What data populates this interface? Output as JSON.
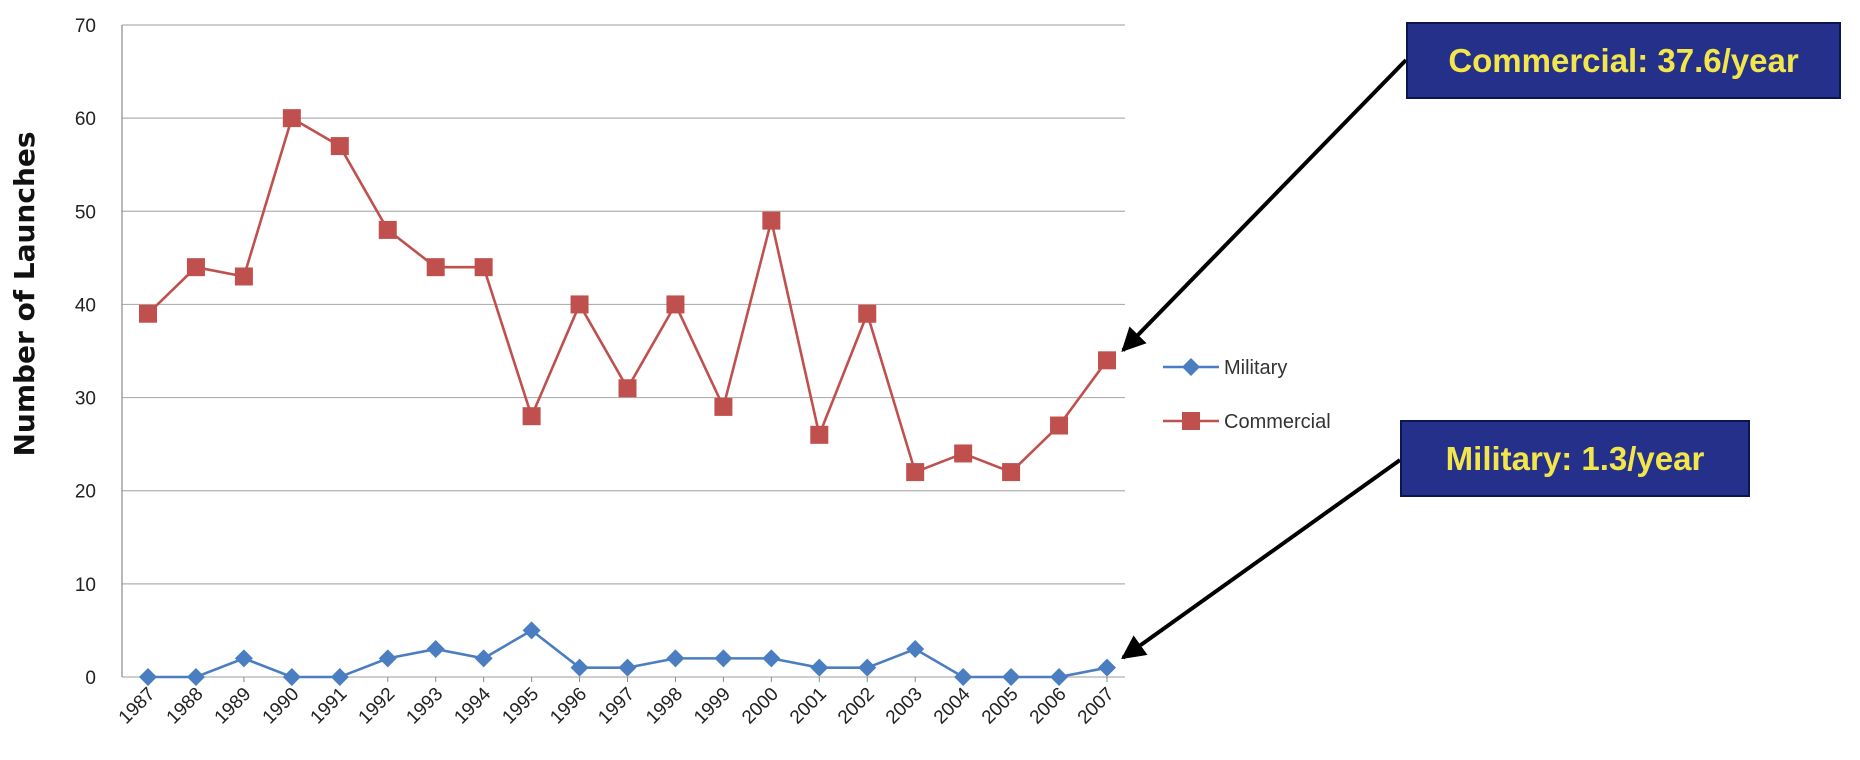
{
  "chart_data": {
    "type": "line",
    "title": "",
    "xlabel": "",
    "ylabel": "Number of Launches",
    "ylim": [
      0,
      70
    ],
    "yticks": [
      0,
      10,
      20,
      30,
      40,
      50,
      60,
      70
    ],
    "grid": "horizontal",
    "legend_position": "right",
    "categories": [
      "1987",
      "1988",
      "1989",
      "1990",
      "1991",
      "1992",
      "1993",
      "1994",
      "1995",
      "1996",
      "1997",
      "1998",
      "1999",
      "2000",
      "2001",
      "2002",
      "2003",
      "2004",
      "2005",
      "2006",
      "2007"
    ],
    "series": [
      {
        "name": "Military",
        "color": "#4a7ec1",
        "marker": "diamond",
        "values": [
          0,
          0,
          2,
          0,
          0,
          2,
          3,
          2,
          5,
          1,
          1,
          2,
          2,
          2,
          1,
          1,
          3,
          0,
          0,
          0,
          1
        ]
      },
      {
        "name": "Commercial",
        "color": "#c0504d",
        "marker": "square",
        "values": [
          39,
          44,
          43,
          60,
          57,
          48,
          44,
          44,
          28,
          40,
          31,
          40,
          29,
          49,
          26,
          39,
          22,
          24,
          22,
          27,
          34
        ]
      }
    ],
    "annotations": [
      {
        "text": "Commercial: 37.6/year",
        "series": "Commercial",
        "point_index": 20
      },
      {
        "text": "Military: 1.3/year",
        "series": "Military",
        "point_index": 20
      }
    ]
  },
  "colors": {
    "callout_bg": "#24308a",
    "callout_text": "#f3e64a",
    "grid": "#b0b0b0",
    "arrow": "#000000"
  }
}
